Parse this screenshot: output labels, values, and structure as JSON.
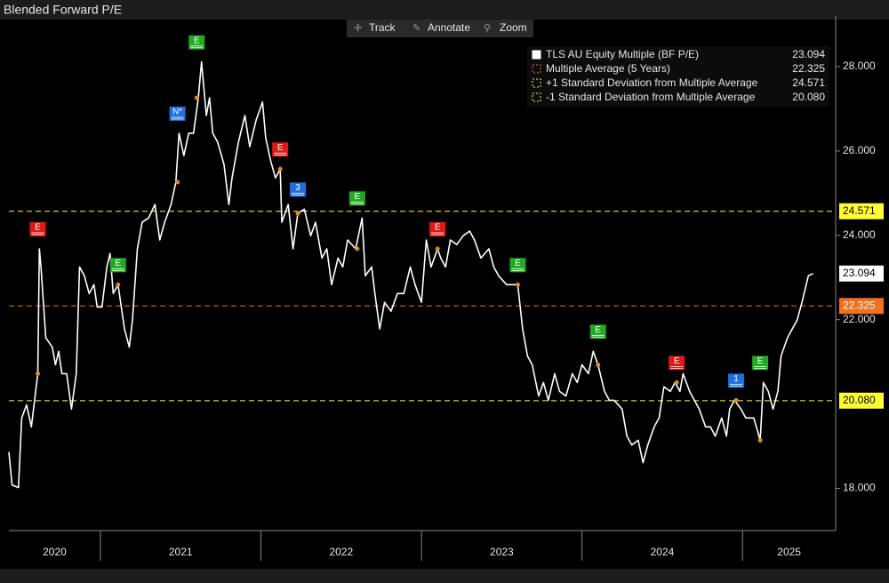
{
  "toolbar": [
    "Track",
    "Annotate",
    "Zoom"
  ],
  "chart_data": {
    "type": "line",
    "title": "Blended Forward P/E",
    "xlim": [
      2020.43,
      2025.58
    ],
    "xticks": [
      2021,
      2022,
      2023,
      2024,
      2025
    ],
    "year_labels": [
      2020,
      2021,
      2022,
      2023,
      2024,
      2025
    ],
    "ylim": [
      17,
      29.2
    ],
    "yticks": [
      {
        "value": 18,
        "label": "18.000"
      },
      {
        "value": 22,
        "label": "22.000"
      },
      {
        "value": 24,
        "label": "24.000"
      },
      {
        "value": 26,
        "label": "26.000"
      },
      {
        "value": 28,
        "label": "28.000"
      }
    ],
    "grid": false,
    "series": [
      {
        "name": "TLS AU Equity Multiple (BF P/E)",
        "color": "#ffffff",
        "x": [
          2020.43,
          2020.45,
          2020.49,
          2020.51,
          2020.54,
          2020.57,
          2020.59,
          2020.61,
          2020.62,
          2020.63,
          2020.66,
          2020.7,
          2020.72,
          2020.74,
          2020.76,
          2020.79,
          2020.82,
          2020.85,
          2020.87,
          2020.9,
          2020.93,
          2020.96,
          2020.98,
          2021.01,
          2021.04,
          2021.06,
          2021.08,
          2021.11,
          2021.15,
          2021.18,
          2021.2,
          2021.23,
          2021.26,
          2021.3,
          2021.34,
          2021.37,
          2021.4,
          2021.44,
          2021.47,
          2021.49,
          2021.52,
          2021.55,
          2021.58,
          2021.61,
          2021.63,
          2021.66,
          2021.68,
          2021.7,
          2021.73,
          2021.77,
          2021.8,
          2021.82,
          2021.86,
          2021.9,
          2021.93,
          2021.97,
          2022.01,
          2022.03,
          2022.06,
          2022.09,
          2022.12,
          2022.13,
          2022.17,
          2022.2,
          2022.23,
          2022.27,
          2022.31,
          2022.34,
          2022.38,
          2022.41,
          2022.44,
          2022.48,
          2022.51,
          2022.54,
          2022.59,
          2022.63,
          2022.65,
          2022.69,
          2022.71,
          2022.74,
          2022.77,
          2022.81,
          2022.85,
          2022.89,
          2022.93,
          2022.96,
          2023.0,
          2023.03,
          2023.06,
          2023.1,
          2023.12,
          2023.15,
          2023.18,
          2023.22,
          2023.26,
          2023.3,
          2023.33,
          2023.37,
          2023.42,
          2023.45,
          2023.48,
          2023.53,
          2023.57,
          2023.6,
          2023.63,
          2023.66,
          2023.69,
          2023.73,
          2023.76,
          2023.79,
          2023.83,
          2023.86,
          2023.9,
          2023.94,
          2023.97,
          2024.0,
          2024.04,
          2024.07,
          2024.1,
          2024.14,
          2024.17,
          2024.2,
          2024.25,
          2024.28,
          2024.31,
          2024.35,
          2024.38,
          2024.41,
          2024.45,
          2024.48,
          2024.51,
          2024.55,
          2024.58,
          2024.61,
          2024.63,
          2024.67,
          2024.7,
          2024.73,
          2024.77,
          2024.8,
          2024.83,
          2024.87,
          2024.9,
          2024.92,
          2024.95,
          2024.99,
          2025.02,
          2025.07,
          2025.11,
          2025.13,
          2025.16,
          2025.19,
          2025.22,
          2025.24,
          2025.28,
          2025.31,
          2025.34,
          2025.37,
          2025.41,
          2025.44
        ],
        "values": [
          18.86,
          18.08,
          18.02,
          19.67,
          19.98,
          19.46,
          20.09,
          20.72,
          23.68,
          23.25,
          21.57,
          21.35,
          20.93,
          21.25,
          20.72,
          20.72,
          19.88,
          20.72,
          23.25,
          23.04,
          22.62,
          22.83,
          22.3,
          22.3,
          23.25,
          23.57,
          22.62,
          22.83,
          21.78,
          21.35,
          21.99,
          23.68,
          24.31,
          24.41,
          24.73,
          23.89,
          24.31,
          24.73,
          25.26,
          26.42,
          25.89,
          26.42,
          26.42,
          27.26,
          28.11,
          26.84,
          27.26,
          26.42,
          26.21,
          25.68,
          24.73,
          25.36,
          26.21,
          26.84,
          26.1,
          26.73,
          27.16,
          26.31,
          25.78,
          25.36,
          25.57,
          24.31,
          24.73,
          23.68,
          24.52,
          24.62,
          23.99,
          24.31,
          23.46,
          23.68,
          22.83,
          23.46,
          23.25,
          23.89,
          23.68,
          24.41,
          23.04,
          23.25,
          22.62,
          21.78,
          22.41,
          22.2,
          22.62,
          22.62,
          23.25,
          22.83,
          22.41,
          23.89,
          23.25,
          23.68,
          23.46,
          23.25,
          23.89,
          23.78,
          23.99,
          24.1,
          23.89,
          23.46,
          23.68,
          23.25,
          23.04,
          22.83,
          22.83,
          22.83,
          21.78,
          21.14,
          20.93,
          20.19,
          20.51,
          20.09,
          20.72,
          20.3,
          20.19,
          20.72,
          20.51,
          20.93,
          20.72,
          21.25,
          20.93,
          20.3,
          20.09,
          20.09,
          19.88,
          19.24,
          19.03,
          19.14,
          18.61,
          19.03,
          19.46,
          19.67,
          20.41,
          20.3,
          20.51,
          20.3,
          20.72,
          20.3,
          20.09,
          19.88,
          19.46,
          19.46,
          19.24,
          19.67,
          19.24,
          19.88,
          20.09,
          19.88,
          19.67,
          19.67,
          19.14,
          20.51,
          20.3,
          19.88,
          20.3,
          21.14,
          21.57,
          21.78,
          21.99,
          22.41,
          23.04,
          23.094
        ]
      }
    ],
    "reference_lines": [
      {
        "name": "Multiple Average (5 Years)",
        "color": "#f07020",
        "value": 22.325
      },
      {
        "name": "+1 Standard Deviation from Multiple Average",
        "color": "#ffff33",
        "value": 24.571
      },
      {
        "name": "-1 Standard Deviation from Multiple Average",
        "color": "#ffff33",
        "value": 20.08,
        "value_label": "20.080"
      }
    ],
    "events": [
      {
        "label": "E",
        "color": "#e01818",
        "x": 2020.61
      },
      {
        "label": "E",
        "color": "#22aa22",
        "x": 2021.11
      },
      {
        "label": "N*",
        "color": "#1e6fe0",
        "x": 2021.48
      },
      {
        "label": "E",
        "color": "#22aa22",
        "x": 2021.6
      },
      {
        "label": "E",
        "color": "#e01818",
        "x": 2022.12
      },
      {
        "label": "3",
        "color": "#1e6fe0",
        "x": 2022.23
      },
      {
        "label": "E",
        "color": "#22aa22",
        "x": 2022.6
      },
      {
        "label": "E",
        "color": "#e01818",
        "x": 2023.1
      },
      {
        "label": "E",
        "color": "#22aa22",
        "x": 2023.6
      },
      {
        "label": "E",
        "color": "#22aa22",
        "x": 2024.1
      },
      {
        "label": "E",
        "color": "#e01818",
        "x": 2024.59
      },
      {
        "label": "1",
        "color": "#1e6fe0",
        "x": 2024.96
      },
      {
        "label": "E",
        "color": "#22aa22",
        "x": 2025.11
      }
    ]
  }
}
